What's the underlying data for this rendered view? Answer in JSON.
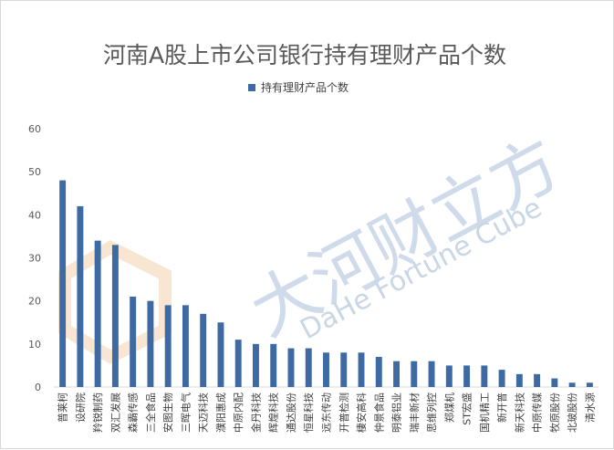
{
  "chart_data": {
    "type": "bar",
    "title": "河南A股上市公司银行持有理财产品个数",
    "series": [
      {
        "name": "持有理财产品个数",
        "color": "#3e6aa4",
        "values": [
          48,
          42,
          34,
          33,
          21,
          20,
          19,
          19,
          17,
          15,
          11,
          10,
          10,
          9,
          9,
          8,
          8,
          8,
          7,
          6,
          6,
          6,
          5,
          5,
          5,
          4,
          3,
          3,
          2,
          1,
          1
        ]
      }
    ],
    "categories": [
      "普莱柯",
      "设研院",
      "羚锐制药",
      "双汇发展",
      "森霸传感",
      "三全食品",
      "安图生物",
      "三晖电气",
      "天迈科技",
      "濮阳惠成",
      "中原内配",
      "金丹科技",
      "辉煌科技",
      "通达股份",
      "恒星科技",
      "远东传动",
      "开普检测",
      "棲安高科",
      "仲景食品",
      "明泰铝业",
      "瑞丰新材",
      "思维列控",
      "郑煤机",
      "ST宏盛",
      "国机精工",
      "新开普",
      "新天科技",
      "中原传媒",
      "牧原股份",
      "北玻股份",
      "清水源"
    ],
    "ylim": [
      0,
      60
    ],
    "yticks": [
      0,
      10,
      20,
      30,
      40,
      50,
      60
    ],
    "grid": false,
    "legend_position": "top-center"
  },
  "watermark": {
    "cn_text": "大河财立方",
    "en_text": "DaHe Fortune Cube"
  }
}
